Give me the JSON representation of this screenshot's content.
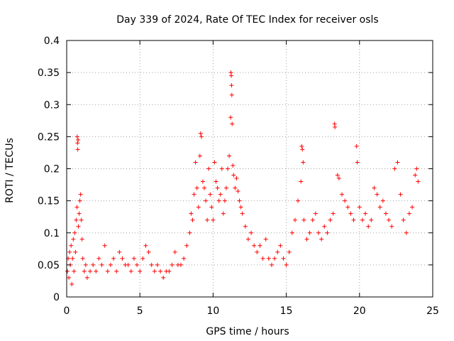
{
  "chart_data": {
    "type": "scatter",
    "title": "Day 339 of 2024, Rate Of TEC Index for receiver osls",
    "xlabel": "GPS time / hours",
    "ylabel": "ROTI / TECUs",
    "xlim": [
      0,
      25
    ],
    "ylim": [
      0,
      0.4
    ],
    "xticks": [
      0,
      5,
      10,
      15,
      20,
      25
    ],
    "xtick_labels": [
      "0",
      "5",
      "10",
      "15",
      "20",
      "25"
    ],
    "yticks": [
      0,
      0.05,
      0.1,
      0.15,
      0.2,
      0.25,
      0.3,
      0.35,
      0.4
    ],
    "ytick_labels": [
      "0",
      "0.05",
      "0.1",
      "0.15",
      "0.2",
      "0.25",
      "0.3",
      "0.35",
      "0.4"
    ],
    "grid": true,
    "marker": "+",
    "marker_color": "#ff0000",
    "series": [
      {
        "values": [
          [
            0.05,
            0.04
          ],
          [
            0.1,
            0.06
          ],
          [
            0.15,
            0.03
          ],
          [
            0.2,
            0.07
          ],
          [
            0.25,
            0.05
          ],
          [
            0.3,
            0.08
          ],
          [
            0.35,
            0.02
          ],
          [
            0.4,
            0.06
          ],
          [
            0.45,
            0.09
          ],
          [
            0.5,
            0.04
          ],
          [
            0.55,
            0.1
          ],
          [
            0.6,
            0.07
          ],
          [
            0.65,
            0.12
          ],
          [
            0.7,
            0.14
          ],
          [
            0.72,
            0.25
          ],
          [
            0.74,
            0.24
          ],
          [
            0.76,
            0.23
          ],
          [
            0.78,
            0.245
          ],
          [
            0.8,
            0.11
          ],
          [
            0.85,
            0.13
          ],
          [
            0.9,
            0.15
          ],
          [
            0.95,
            0.16
          ],
          [
            1.0,
            0.12
          ],
          [
            1.05,
            0.09
          ],
          [
            1.1,
            0.06
          ],
          [
            1.2,
            0.04
          ],
          [
            1.3,
            0.05
          ],
          [
            1.4,
            0.03
          ],
          [
            1.6,
            0.04
          ],
          [
            1.8,
            0.05
          ],
          [
            2.0,
            0.04
          ],
          [
            2.2,
            0.06
          ],
          [
            2.4,
            0.05
          ],
          [
            2.6,
            0.08
          ],
          [
            2.8,
            0.04
          ],
          [
            3.0,
            0.05
          ],
          [
            3.2,
            0.06
          ],
          [
            3.4,
            0.04
          ],
          [
            3.6,
            0.07
          ],
          [
            3.8,
            0.06
          ],
          [
            4.0,
            0.05
          ],
          [
            4.2,
            0.05
          ],
          [
            4.4,
            0.04
          ],
          [
            4.6,
            0.06
          ],
          [
            4.8,
            0.05
          ],
          [
            5.0,
            0.04
          ],
          [
            5.2,
            0.06
          ],
          [
            5.4,
            0.08
          ],
          [
            5.6,
            0.07
          ],
          [
            5.8,
            0.05
          ],
          [
            6.0,
            0.04
          ],
          [
            6.2,
            0.05
          ],
          [
            6.4,
            0.04
          ],
          [
            6.6,
            0.03
          ],
          [
            6.8,
            0.04
          ],
          [
            7.0,
            0.04
          ],
          [
            7.2,
            0.05
          ],
          [
            7.4,
            0.07
          ],
          [
            7.6,
            0.05
          ],
          [
            7.8,
            0.05
          ],
          [
            8.0,
            0.06
          ],
          [
            8.2,
            0.08
          ],
          [
            8.4,
            0.1
          ],
          [
            8.5,
            0.13
          ],
          [
            8.6,
            0.12
          ],
          [
            8.7,
            0.16
          ],
          [
            8.8,
            0.21
          ],
          [
            8.9,
            0.17
          ],
          [
            9.0,
            0.14
          ],
          [
            9.1,
            0.22
          ],
          [
            9.15,
            0.255
          ],
          [
            9.2,
            0.25
          ],
          [
            9.3,
            0.18
          ],
          [
            9.4,
            0.17
          ],
          [
            9.5,
            0.15
          ],
          [
            9.6,
            0.12
          ],
          [
            9.7,
            0.2
          ],
          [
            9.8,
            0.16
          ],
          [
            9.9,
            0.14
          ],
          [
            10.0,
            0.12
          ],
          [
            10.1,
            0.21
          ],
          [
            10.2,
            0.18
          ],
          [
            10.3,
            0.17
          ],
          [
            10.4,
            0.15
          ],
          [
            10.5,
            0.16
          ],
          [
            10.6,
            0.2
          ],
          [
            10.7,
            0.13
          ],
          [
            10.8,
            0.15
          ],
          [
            10.9,
            0.17
          ],
          [
            11.0,
            0.2
          ],
          [
            11.1,
            0.22
          ],
          [
            11.2,
            0.28
          ],
          [
            11.22,
            0.35
          ],
          [
            11.24,
            0.345
          ],
          [
            11.26,
            0.33
          ],
          [
            11.28,
            0.315
          ],
          [
            11.3,
            0.27
          ],
          [
            11.35,
            0.205
          ],
          [
            11.4,
            0.19
          ],
          [
            11.5,
            0.17
          ],
          [
            11.6,
            0.185
          ],
          [
            11.7,
            0.165
          ],
          [
            11.8,
            0.15
          ],
          [
            11.9,
            0.14
          ],
          [
            12.0,
            0.13
          ],
          [
            12.2,
            0.11
          ],
          [
            12.4,
            0.09
          ],
          [
            12.6,
            0.1
          ],
          [
            12.8,
            0.08
          ],
          [
            13.0,
            0.07
          ],
          [
            13.2,
            0.08
          ],
          [
            13.4,
            0.06
          ],
          [
            13.6,
            0.09
          ],
          [
            13.8,
            0.06
          ],
          [
            14.0,
            0.05
          ],
          [
            14.2,
            0.06
          ],
          [
            14.4,
            0.07
          ],
          [
            14.6,
            0.08
          ],
          [
            14.8,
            0.06
          ],
          [
            15.0,
            0.05
          ],
          [
            15.2,
            0.07
          ],
          [
            15.4,
            0.1
          ],
          [
            15.6,
            0.12
          ],
          [
            15.8,
            0.15
          ],
          [
            16.0,
            0.18
          ],
          [
            16.05,
            0.235
          ],
          [
            16.1,
            0.23
          ],
          [
            16.15,
            0.21
          ],
          [
            16.2,
            0.12
          ],
          [
            16.4,
            0.09
          ],
          [
            16.6,
            0.1
          ],
          [
            16.8,
            0.12
          ],
          [
            17.0,
            0.13
          ],
          [
            17.2,
            0.1
          ],
          [
            17.4,
            0.09
          ],
          [
            17.6,
            0.11
          ],
          [
            17.8,
            0.1
          ],
          [
            18.0,
            0.12
          ],
          [
            18.2,
            0.13
          ],
          [
            18.3,
            0.27
          ],
          [
            18.32,
            0.265
          ],
          [
            18.5,
            0.19
          ],
          [
            18.6,
            0.185
          ],
          [
            18.8,
            0.16
          ],
          [
            19.0,
            0.15
          ],
          [
            19.2,
            0.14
          ],
          [
            19.4,
            0.13
          ],
          [
            19.6,
            0.12
          ],
          [
            19.8,
            0.235
          ],
          [
            19.85,
            0.21
          ],
          [
            20.0,
            0.14
          ],
          [
            20.2,
            0.12
          ],
          [
            20.4,
            0.13
          ],
          [
            20.6,
            0.11
          ],
          [
            20.8,
            0.12
          ],
          [
            21.0,
            0.17
          ],
          [
            21.2,
            0.16
          ],
          [
            21.4,
            0.14
          ],
          [
            21.6,
            0.15
          ],
          [
            21.8,
            0.13
          ],
          [
            22.0,
            0.12
          ],
          [
            22.2,
            0.11
          ],
          [
            22.4,
            0.2
          ],
          [
            22.6,
            0.21
          ],
          [
            22.8,
            0.16
          ],
          [
            23.0,
            0.12
          ],
          [
            23.2,
            0.1
          ],
          [
            23.4,
            0.13
          ],
          [
            23.6,
            0.14
          ],
          [
            23.8,
            0.19
          ],
          [
            23.9,
            0.2
          ],
          [
            24.0,
            0.18
          ]
        ]
      }
    ]
  }
}
